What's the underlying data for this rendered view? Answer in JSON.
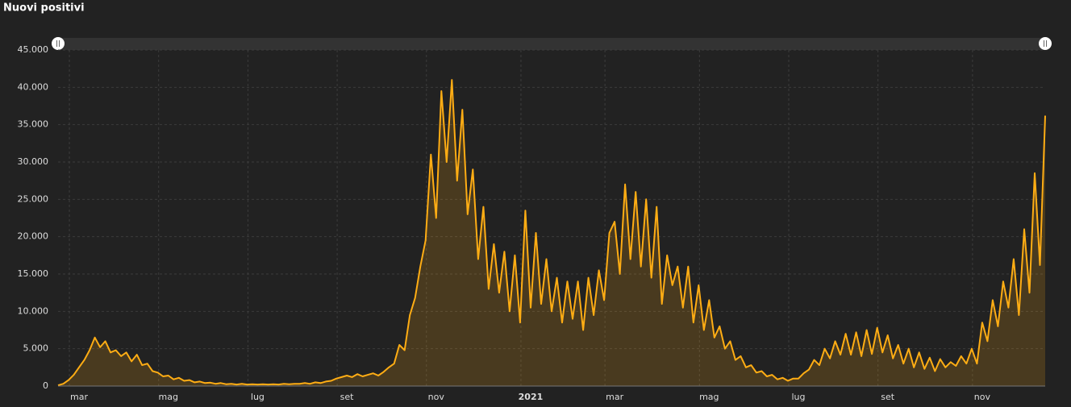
{
  "chart_data": {
    "type": "line",
    "title": "Nuovi positivi",
    "categories": [
      null,
      null,
      null,
      null,
      "mar",
      null,
      null,
      null,
      null,
      null,
      null,
      null,
      null,
      null,
      null,
      null,
      null,
      null,
      null,
      null,
      null,
      "mag",
      null,
      null,
      null,
      null,
      null,
      null,
      null,
      null,
      null,
      null,
      null,
      null,
      null,
      null,
      null,
      null,
      "lug",
      null,
      null,
      null,
      null,
      null,
      null,
      null,
      null,
      null,
      null,
      null,
      null,
      null,
      null,
      null,
      null,
      "set",
      null,
      null,
      null,
      null,
      null,
      null,
      null,
      null,
      null,
      null,
      null,
      null,
      null,
      null,
      null,
      null,
      "nov",
      null,
      null,
      null,
      null,
      null,
      null,
      null,
      null,
      null,
      null,
      null,
      null,
      null,
      null,
      null,
      null,
      null,
      "2021",
      null,
      null,
      null,
      null,
      null,
      null,
      null,
      null,
      null,
      null,
      null,
      null,
      null,
      null,
      null,
      "mar",
      null,
      null,
      null,
      null,
      null,
      null,
      null,
      null,
      null,
      null,
      null,
      null,
      null,
      null,
      null,
      null,
      null,
      "mag",
      null,
      null,
      null,
      null,
      null,
      null,
      null,
      null,
      null,
      null,
      null,
      null,
      null,
      null,
      null,
      null,
      "lug",
      null,
      null,
      null,
      null,
      null,
      null,
      null,
      null,
      null,
      null,
      null,
      null,
      null,
      null,
      null,
      null,
      "set",
      null,
      null,
      null,
      null,
      null,
      null,
      null,
      null,
      null,
      null,
      null,
      null,
      null,
      null,
      null,
      null,
      null,
      "nov",
      null,
      null,
      null,
      null,
      null,
      null,
      null,
      null,
      null,
      null,
      null,
      null
    ],
    "series": [
      {
        "color": "#ffad14",
        "values": [
          100,
          300,
          800,
          1500,
          2500,
          3500,
          4800,
          6500,
          5200,
          6000,
          4500,
          4800,
          4000,
          4500,
          3300,
          4200,
          2800,
          3000,
          2000,
          1800,
          1300,
          1400,
          900,
          1100,
          700,
          800,
          500,
          600,
          400,
          450,
          300,
          400,
          250,
          300,
          200,
          300,
          200,
          250,
          200,
          250,
          200,
          250,
          200,
          300,
          250,
          300,
          300,
          400,
          300,
          500,
          400,
          600,
          700,
          1000,
          1200,
          1400,
          1200,
          1600,
          1300,
          1500,
          1700,
          1400,
          1900,
          2500,
          3000,
          5500,
          4800,
          9500,
          11800,
          16000,
          19500,
          31000,
          22500,
          39500,
          30000,
          41000,
          27500,
          37000,
          23000,
          29000,
          17000,
          24000,
          13000,
          19000,
          12500,
          18000,
          10000,
          17500,
          8500,
          23500,
          10500,
          20500,
          11000,
          17000,
          10000,
          14500,
          8500,
          14000,
          9000,
          14000,
          7500,
          14500,
          9500,
          15500,
          11500,
          20500,
          22000,
          15000,
          27000,
          17000,
          26000,
          16000,
          25000,
          14500,
          24000,
          11000,
          17500,
          13500,
          16000,
          10500,
          16000,
          8500,
          13500,
          7500,
          11500,
          6500,
          8000,
          5000,
          6000,
          3500,
          4000,
          2500,
          2800,
          1800,
          2000,
          1300,
          1500,
          900,
          1100,
          700,
          1000,
          1000,
          1700,
          2200,
          3500,
          2800,
          5000,
          3700,
          6000,
          4200,
          7000,
          4200,
          7200,
          4000,
          7500,
          4300,
          7800,
          4500,
          6800,
          3700,
          5500,
          3000,
          5000,
          2500,
          4500,
          2300,
          3800,
          2000,
          3600,
          2500,
          3200,
          2700,
          4000,
          3000,
          5000,
          3000,
          8500,
          6000,
          11500,
          8000,
          14000,
          10500,
          17000,
          9500,
          21000,
          12500,
          28500,
          16200,
          36200
        ]
      }
    ],
    "ylim": [
      0,
      45000
    ],
    "yticks": [
      0,
      {
        "value": 5000,
        "label": "5.000"
      },
      {
        "value": 10000,
        "label": "10.000"
      },
      {
        "value": 15000,
        "label": "15.000"
      },
      {
        "value": 20000,
        "label": "20.000"
      },
      {
        "value": 25000,
        "label": "25.000"
      },
      {
        "value": 30000,
        "label": "30.000"
      },
      {
        "value": 35000,
        "label": "35.000"
      },
      {
        "value": 40000,
        "label": "40.000"
      },
      {
        "value": 45000,
        "label": "45.000"
      }
    ],
    "grid": true
  }
}
